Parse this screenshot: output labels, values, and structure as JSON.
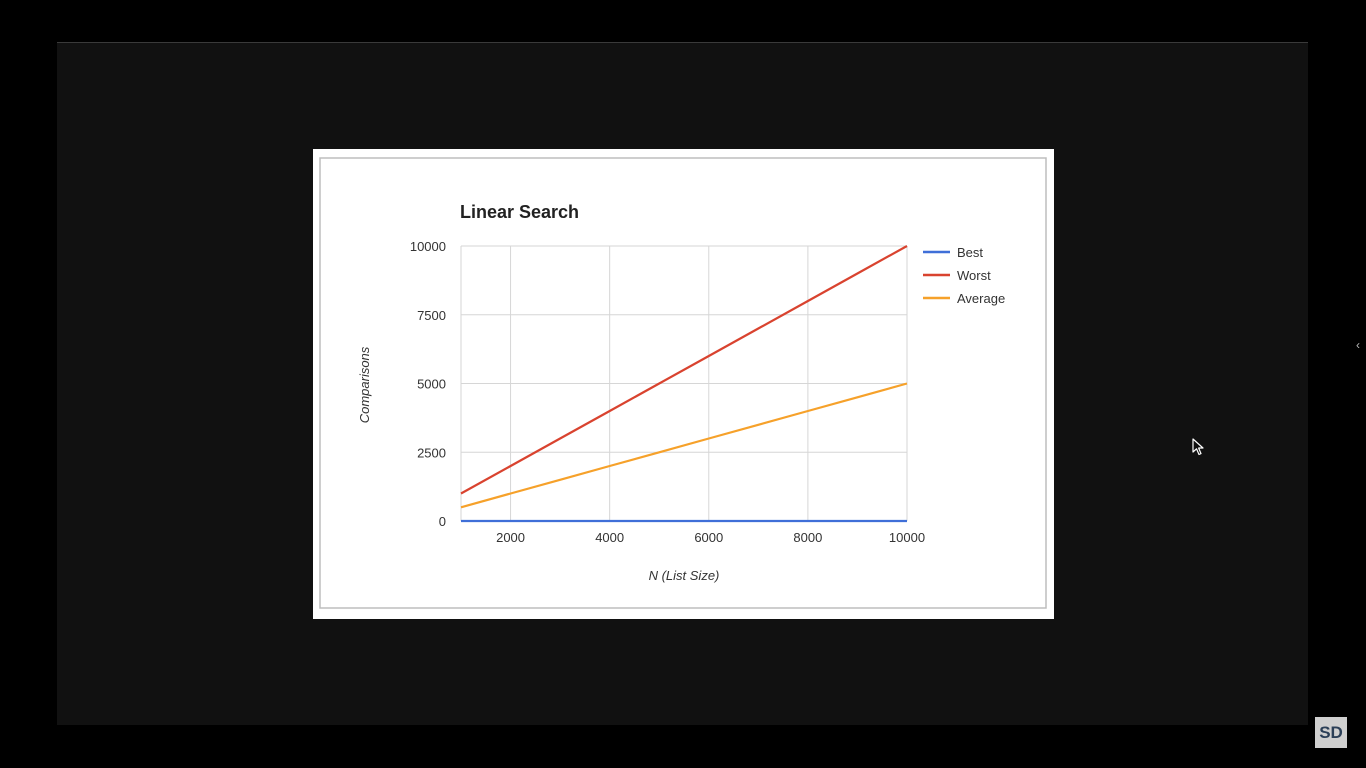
{
  "badge": {
    "label": "SD"
  },
  "icons": {
    "cursor": "mouse-pointer-icon",
    "side_nav": "chevron-left-icon"
  },
  "chart_data": {
    "type": "line",
    "title": "Linear Search",
    "xlabel": "N (List Size)",
    "ylabel": "Comparisons",
    "x": [
      1000,
      2000,
      3000,
      4000,
      5000,
      6000,
      7000,
      8000,
      9000,
      10000
    ],
    "xlim": [
      1000,
      10000
    ],
    "ylim": [
      0,
      10000
    ],
    "xticks": [
      2000,
      4000,
      6000,
      8000,
      10000
    ],
    "yticks": [
      0,
      2500,
      5000,
      7500,
      10000
    ],
    "grid": true,
    "legend_position": "right",
    "series": [
      {
        "name": "Best",
        "color": "#3f6fd8",
        "values": [
          1,
          1,
          1,
          1,
          1,
          1,
          1,
          1,
          1,
          1
        ]
      },
      {
        "name": "Worst",
        "color": "#d9432f",
        "values": [
          1000,
          2000,
          3000,
          4000,
          5000,
          6000,
          7000,
          8000,
          9000,
          10000
        ]
      },
      {
        "name": "Average",
        "color": "#f6a12a",
        "values": [
          500,
          1000,
          1500,
          2000,
          2500,
          3000,
          3500,
          4000,
          4500,
          5000
        ]
      }
    ]
  }
}
